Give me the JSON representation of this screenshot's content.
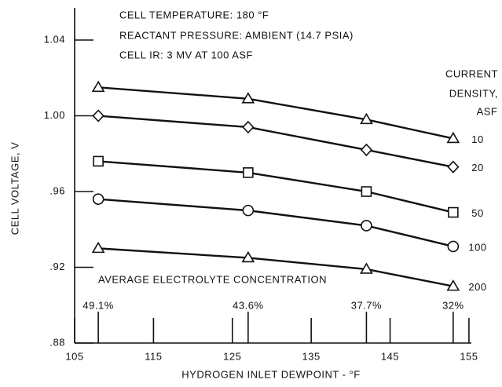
{
  "chart_data": {
    "type": "line",
    "annotations": [
      "CELL TEMPERATURE:  180 °F",
      "REACTANT PRESSURE: AMBIENT (14.7 PSIA)",
      "CELL IR:  3 MV AT 100 ASF"
    ],
    "legend_title": [
      "CURRENT",
      "DENSITY,",
      "ASF"
    ],
    "x_label": "HYDROGEN INLET DEWPOINT - °F",
    "y_label": "CELL VOLTAGE, V",
    "concentration_title": "AVERAGE ELECTROLYTE CONCENTRATION",
    "concentration_labels": [
      "49.1%",
      "43.6%",
      "37.7%",
      "32%"
    ],
    "x": [
      108,
      127,
      142,
      153
    ],
    "series": [
      {
        "name": "10",
        "color": "#111111",
        "marker": "triangle",
        "values": [
          1.015,
          1.009,
          0.998,
          0.988
        ]
      },
      {
        "name": "20",
        "color": "#111111",
        "marker": "diamond",
        "values": [
          1.0,
          0.994,
          0.982,
          0.973
        ]
      },
      {
        "name": "50",
        "color": "#111111",
        "marker": "square",
        "values": [
          0.976,
          0.97,
          0.96,
          0.949
        ]
      },
      {
        "name": "100",
        "color": "#111111",
        "marker": "circle",
        "values": [
          0.956,
          0.95,
          0.942,
          0.931
        ]
      },
      {
        "name": "200",
        "color": "#111111",
        "marker": "triangle",
        "values": [
          0.93,
          0.925,
          0.919,
          0.91
        ]
      }
    ],
    "xlim": [
      105,
      157
    ],
    "xticks": [
      105,
      115,
      125,
      135,
      145,
      155
    ],
    "ylim": [
      0.88,
      1.057
    ],
    "yticks": [
      {
        "value": 0.88,
        "label": ".88"
      },
      {
        "value": 0.92,
        "label": ".92"
      },
      {
        "value": 0.96,
        "label": ".96"
      },
      {
        "value": 1.0,
        "label": "1.00"
      },
      1.04
    ]
  }
}
